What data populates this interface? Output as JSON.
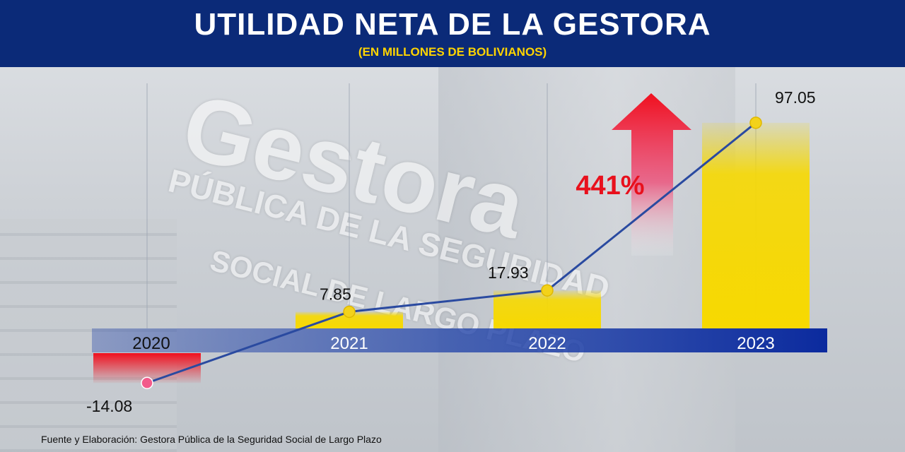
{
  "header": {
    "title": "UTILIDAD NETA DE LA GESTORA",
    "subtitle": "(EN MILLONES DE BOLIVIANOS)"
  },
  "background_text": {
    "logo": "Gestora",
    "line1": "PÚBLICA DE LA SEGURIDAD",
    "line2": "SOCIAL DE LARGO PLAZO"
  },
  "annotation": {
    "growth": "441%",
    "growth_color": "#e8101c"
  },
  "source": "Fuente y Elaboración: Gestora Pública de la Seguridad Social de Largo Plazo",
  "colors": {
    "header_bg": "#0b2a78",
    "subtitle": "#ffd400",
    "positive_bar": "#f7d900",
    "negative_bar": "#f0101e",
    "line": "#2a4aa0",
    "axis_band": "#1c3fa8"
  },
  "chart_data": {
    "type": "bar",
    "title": "UTILIDAD NETA DE LA GESTORA",
    "subtitle": "(EN MILLONES DE BOLIVIANOS)",
    "categories": [
      "2020",
      "2021",
      "2022",
      "2023"
    ],
    "values": [
      -14.08,
      7.85,
      17.93,
      97.05
    ],
    "value_labels": [
      "-14.08",
      "7.85",
      "17.93",
      "97.05"
    ],
    "overlay": "line",
    "grid": false,
    "legend": "none"
  }
}
